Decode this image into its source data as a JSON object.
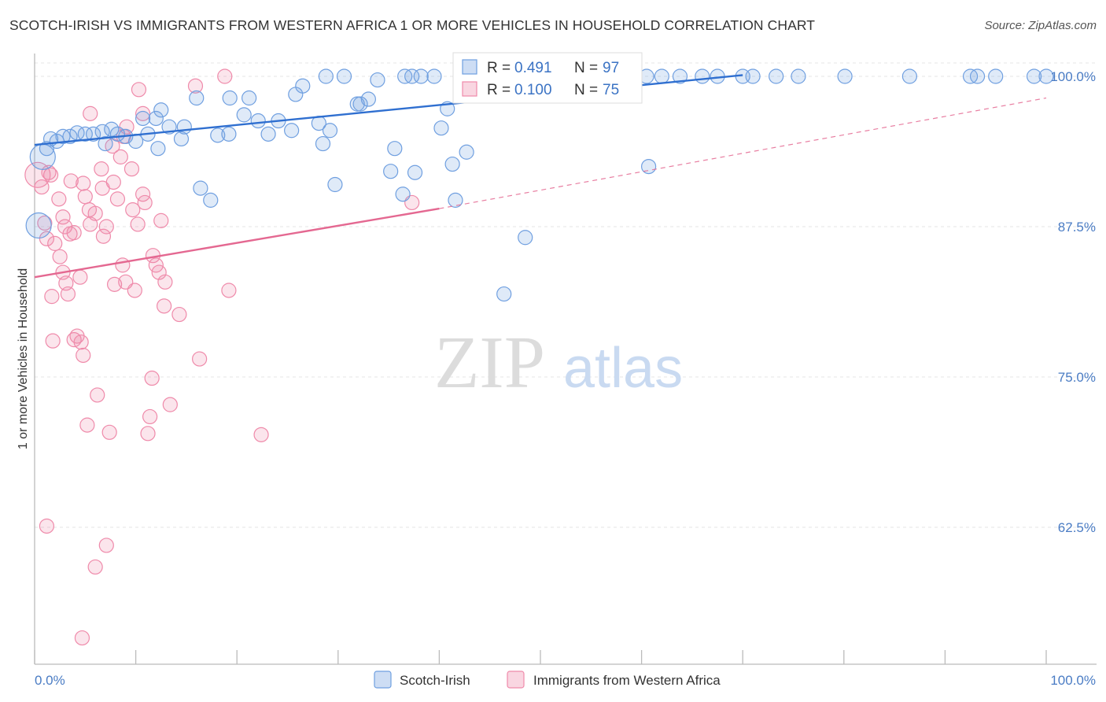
{
  "title": "SCOTCH-IRISH VS IMMIGRANTS FROM WESTERN AFRICA 1 OR MORE VEHICLES IN HOUSEHOLD CORRELATION CHART",
  "source": "Source: ZipAtlas.com",
  "watermark": {
    "zip": "ZIP",
    "atlas": "atlas"
  },
  "colors": {
    "blue": "#6f9fe0",
    "blue_line": "#2f6fd0",
    "pink": "#ef8aaa",
    "pink_line": "#e46891",
    "tick": "#4a7cc4"
  },
  "chart_data": {
    "type": "scatter",
    "ylabel": "1 or more Vehicles in Household",
    "xlim": [
      0,
      100
    ],
    "ylim": [
      52,
      102
    ],
    "x_ticks": [
      "0.0%",
      "100.0%"
    ],
    "y_ticks": [
      {
        "value": 100.0,
        "label": "100.0%"
      },
      {
        "value": 87.5,
        "label": "87.5%"
      },
      {
        "value": 75.0,
        "label": "75.0%"
      },
      {
        "value": 62.5,
        "label": "62.5%"
      }
    ],
    "grid": true,
    "legend_position": "bottom",
    "stats": [
      {
        "r_label": "R =",
        "r": "0.491",
        "n_label": "N =",
        "n": "97"
      },
      {
        "r_label": "R =",
        "r": "0.100",
        "n_label": "N =",
        "n": "75"
      }
    ],
    "series": [
      {
        "name": "Scotch-Irish",
        "color": "#6f9fe0",
        "trend": {
          "x": [
            0,
            70
          ],
          "y": [
            94.3,
            100.1
          ],
          "dashed_to": null
        },
        "points": [
          [
            0.4,
            87.6,
            1
          ],
          [
            0.8,
            93.3,
            1
          ],
          [
            1.2,
            94.0,
            0
          ],
          [
            1.6,
            94.8,
            0
          ],
          [
            2.2,
            94.6,
            0
          ],
          [
            2.8,
            95.0,
            0
          ],
          [
            3.5,
            95.0,
            0
          ],
          [
            4.2,
            95.3,
            0
          ],
          [
            5.0,
            95.2,
            0
          ],
          [
            5.8,
            95.2,
            0
          ],
          [
            6.7,
            95.4,
            0
          ],
          [
            7.0,
            94.4,
            0
          ],
          [
            7.6,
            95.6,
            0
          ],
          [
            8.2,
            95.2,
            0
          ],
          [
            9.0,
            95.0,
            0
          ],
          [
            10.0,
            94.6,
            0
          ],
          [
            11.2,
            95.2,
            0
          ],
          [
            12.0,
            96.5,
            0
          ],
          [
            12.2,
            94.0,
            0
          ],
          [
            13.3,
            95.8,
            0
          ],
          [
            14.8,
            95.8,
            0
          ],
          [
            10.7,
            96.5,
            0
          ],
          [
            12.5,
            97.2,
            0
          ],
          [
            14.5,
            94.8,
            0
          ],
          [
            16.0,
            98.2,
            0
          ],
          [
            16.4,
            90.7,
            0
          ],
          [
            17.4,
            89.7,
            0
          ],
          [
            18.1,
            95.1,
            0
          ],
          [
            19.2,
            95.2,
            0
          ],
          [
            19.3,
            98.2,
            0
          ],
          [
            20.7,
            96.8,
            0
          ],
          [
            21.2,
            98.2,
            0
          ],
          [
            22.1,
            96.3,
            0
          ],
          [
            23.1,
            95.2,
            0
          ],
          [
            24.1,
            96.3,
            0
          ],
          [
            25.4,
            95.5,
            0
          ],
          [
            25.8,
            98.5,
            0
          ],
          [
            26.5,
            99.2,
            0
          ],
          [
            28.1,
            96.1,
            0
          ],
          [
            28.5,
            94.4,
            0
          ],
          [
            29.2,
            95.5,
            0
          ],
          [
            29.7,
            91.0,
            0
          ],
          [
            30.6,
            100.0,
            0
          ],
          [
            32.2,
            97.7,
            0
          ],
          [
            31.9,
            97.7,
            0
          ],
          [
            33.0,
            98.1,
            0
          ],
          [
            33.9,
            99.7,
            0
          ],
          [
            35.6,
            94.0,
            0
          ],
          [
            35.2,
            92.1,
            0
          ],
          [
            36.4,
            90.2,
            0
          ],
          [
            37.3,
            100.0,
            0
          ],
          [
            37.6,
            92.0,
            0
          ],
          [
            38.2,
            100.0,
            0
          ],
          [
            39.5,
            100.0,
            0
          ],
          [
            40.2,
            95.7,
            0
          ],
          [
            40.8,
            97.3,
            0
          ],
          [
            41.3,
            92.7,
            0
          ],
          [
            41.6,
            89.7,
            0
          ],
          [
            42.3,
            100.0,
            0
          ],
          [
            42.7,
            93.7,
            0
          ],
          [
            45.8,
            98.4,
            0
          ],
          [
            46.4,
            100.0,
            0
          ],
          [
            47.7,
            100.0,
            0
          ],
          [
            47.3,
            99.1,
            0
          ],
          [
            49.3,
            100.0,
            0
          ],
          [
            49.5,
            100.0,
            0
          ],
          [
            49.9,
            100.0,
            0
          ],
          [
            51.0,
            100.0,
            0
          ],
          [
            51.5,
            100.0,
            0
          ],
          [
            53.0,
            100.0,
            0
          ],
          [
            53.3,
            100.0,
            0
          ],
          [
            54.0,
            100.0,
            0
          ],
          [
            56.0,
            100.0,
            0
          ],
          [
            57.0,
            100.0,
            0
          ],
          [
            58.2,
            100.0,
            0
          ],
          [
            60.5,
            100.0,
            0
          ],
          [
            63.8,
            100.0,
            0
          ],
          [
            67.5,
            100.0,
            0
          ],
          [
            71.0,
            100.0,
            0
          ],
          [
            73.3,
            100.0,
            0
          ],
          [
            75.5,
            100.0,
            0
          ],
          [
            80.1,
            100.0,
            0
          ],
          [
            86.5,
            100.0,
            0
          ],
          [
            92.5,
            100.0,
            0
          ],
          [
            93.2,
            100.0,
            0
          ],
          [
            95.0,
            100.0,
            0
          ],
          [
            98.8,
            100.0,
            0
          ],
          [
            100.0,
            100.0,
            0
          ],
          [
            48.5,
            86.6,
            0
          ],
          [
            46.4,
            81.9,
            0
          ],
          [
            60.7,
            92.5,
            0
          ],
          [
            70.0,
            100.0,
            0
          ],
          [
            36.6,
            100.0,
            0
          ],
          [
            28.8,
            100.0,
            0
          ],
          [
            47.6,
            100.0,
            0
          ],
          [
            62.0,
            100.0,
            0
          ],
          [
            66.0,
            100.0,
            0
          ]
        ]
      },
      {
        "name": "Immigrants from Western Africa",
        "color": "#ef8aaa",
        "trend": {
          "x": [
            0,
            40
          ],
          "y": [
            83.3,
            89.0
          ],
          "dashed_to": [
            100,
            98.2
          ]
        },
        "points": [
          [
            0.3,
            91.8,
            1
          ],
          [
            0.7,
            90.8,
            0
          ],
          [
            1.0,
            87.8,
            0
          ],
          [
            1.2,
            86.5,
            0
          ],
          [
            1.6,
            91.8,
            0
          ],
          [
            1.7,
            81.7,
            0
          ],
          [
            1.8,
            78.0,
            0
          ],
          [
            2.0,
            86.1,
            0
          ],
          [
            2.4,
            89.8,
            0
          ],
          [
            2.8,
            83.7,
            0
          ],
          [
            3.0,
            87.5,
            0
          ],
          [
            3.1,
            82.8,
            0
          ],
          [
            3.3,
            81.9,
            0
          ],
          [
            3.5,
            86.9,
            0
          ],
          [
            3.6,
            91.3,
            0
          ],
          [
            3.9,
            78.1,
            0
          ],
          [
            4.2,
            78.4,
            0
          ],
          [
            4.5,
            83.3,
            0
          ],
          [
            4.6,
            77.9,
            0
          ],
          [
            4.8,
            76.8,
            0
          ],
          [
            4.8,
            91.1,
            0
          ],
          [
            5.2,
            71.0,
            0
          ],
          [
            5.4,
            88.9,
            0
          ],
          [
            5.5,
            87.7,
            0
          ],
          [
            6.0,
            88.6,
            0
          ],
          [
            6.2,
            73.5,
            0
          ],
          [
            6.6,
            92.3,
            0
          ],
          [
            6.8,
            86.7,
            0
          ],
          [
            7.1,
            87.5,
            0
          ],
          [
            7.4,
            70.4,
            0
          ],
          [
            7.8,
            91.2,
            0
          ],
          [
            7.9,
            82.7,
            0
          ],
          [
            8.2,
            89.8,
            0
          ],
          [
            8.7,
            84.3,
            0
          ],
          [
            8.8,
            95.0,
            0
          ],
          [
            9.0,
            82.9,
            0
          ],
          [
            9.6,
            92.3,
            0
          ],
          [
            9.7,
            88.9,
            0
          ],
          [
            9.9,
            82.2,
            0
          ],
          [
            10.2,
            87.7,
            0
          ],
          [
            10.3,
            98.9,
            0
          ],
          [
            10.7,
            90.2,
            0
          ],
          [
            10.9,
            89.5,
            0
          ],
          [
            11.2,
            70.3,
            0
          ],
          [
            11.4,
            71.7,
            0
          ],
          [
            11.6,
            74.9,
            0
          ],
          [
            11.7,
            85.1,
            0
          ],
          [
            12.0,
            84.3,
            0
          ],
          [
            12.3,
            83.7,
            0
          ],
          [
            12.8,
            80.9,
            0
          ],
          [
            12.9,
            82.9,
            0
          ],
          [
            13.4,
            72.7,
            0
          ],
          [
            14.3,
            80.2,
            0
          ],
          [
            15.9,
            99.2,
            0
          ],
          [
            16.3,
            76.5,
            0
          ],
          [
            18.8,
            100.0,
            0
          ],
          [
            19.2,
            82.2,
            0
          ],
          [
            22.4,
            70.2,
            0
          ],
          [
            37.3,
            89.5,
            0
          ],
          [
            1.2,
            62.6,
            0
          ],
          [
            6.0,
            59.2,
            0
          ],
          [
            7.1,
            61.0,
            0
          ],
          [
            4.7,
            53.3,
            0
          ],
          [
            2.8,
            88.3,
            0
          ],
          [
            5.5,
            96.9,
            0
          ],
          [
            8.5,
            93.3,
            0
          ],
          [
            9.1,
            95.8,
            0
          ],
          [
            3.9,
            87.0,
            0
          ],
          [
            6.7,
            90.7,
            0
          ],
          [
            10.7,
            96.9,
            0
          ],
          [
            1.4,
            92.0,
            0
          ],
          [
            2.5,
            85.0,
            0
          ],
          [
            5.0,
            90.0,
            0
          ],
          [
            7.7,
            94.2,
            0
          ],
          [
            12.5,
            88.0,
            0
          ]
        ]
      }
    ]
  }
}
